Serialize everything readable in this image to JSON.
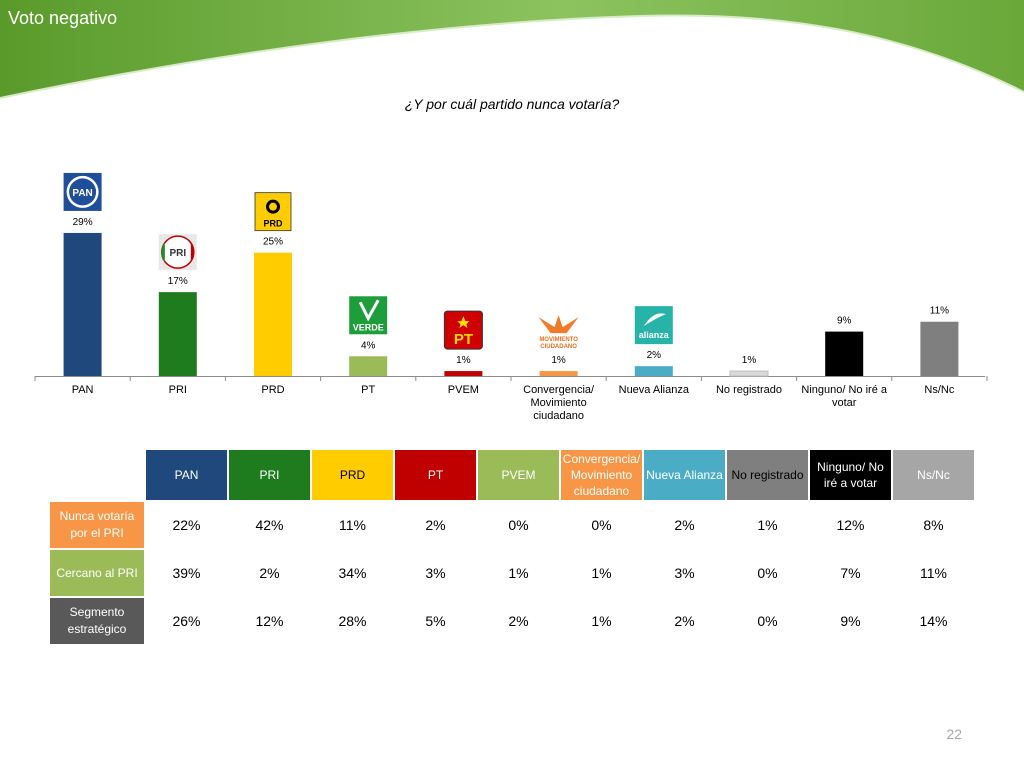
{
  "slide": {
    "title": "Voto negativo",
    "page_number": "22"
  },
  "colors": {
    "header_green": "#5f9e2f",
    "header_light": "#8fc463"
  },
  "chart_data": {
    "type": "bar",
    "title": "¿Y por cuál partido nunca votaría?",
    "categories": [
      "PAN",
      "PRI",
      "PRD",
      "PT",
      "PVEM",
      "Convergencia/ Movimiento ciudadano",
      "Nueva Alianza",
      "No registrado",
      "Ninguno/ No iré a votar",
      "Ns/Nc"
    ],
    "values": [
      29,
      17,
      25,
      4,
      1,
      1,
      2,
      1,
      9,
      11
    ],
    "value_labels": [
      "29%",
      "17%",
      "25%",
      "4%",
      "1%",
      "1%",
      "2%",
      "1%",
      "9%",
      "11%"
    ],
    "colors": [
      "#1f497d",
      "#1e7b1e",
      "#ffcc00",
      "#9bbb59",
      "#c00000",
      "#f79646",
      "#4bacc6",
      "#d9d9d9",
      "#000000",
      "#7f7f7f"
    ],
    "logos": [
      {
        "name": "pan-logo",
        "text": "PAN"
      },
      {
        "name": "pri-logo",
        "text": "PRI"
      },
      {
        "name": "prd-logo",
        "text": "PRD"
      },
      {
        "name": "pt-verde-logo",
        "text": "VERDE"
      },
      {
        "name": "pvem-pt-logo",
        "text": "PT"
      },
      {
        "name": "movimiento-ciudadano-logo",
        "text": "MOVIMIENTO CIUDADANO"
      },
      {
        "name": "nueva-alianza-logo",
        "text": "alianza"
      }
    ],
    "ylim": [
      0,
      30
    ],
    "grid": false,
    "legend": "none"
  },
  "table": {
    "columns": [
      {
        "label": "PAN",
        "bg": "#1f497d",
        "fg": "#ffffff"
      },
      {
        "label": "PRI",
        "bg": "#1e7b1e",
        "fg": "#ffffff"
      },
      {
        "label": "PRD",
        "bg": "#ffcc00",
        "fg": "#000000"
      },
      {
        "label": "PT",
        "bg": "#c00000",
        "fg": "#ffffff"
      },
      {
        "label": "PVEM",
        "bg": "#9bbb59",
        "fg": "#ffffff"
      },
      {
        "label": "Convergencia/ Movimiento ciudadano",
        "bg": "#f79646",
        "fg": "#ffffff"
      },
      {
        "label": "Nueva Alianza",
        "bg": "#4bacc6",
        "fg": "#ffffff"
      },
      {
        "label": "No registrado",
        "bg": "#7f7f7f",
        "fg": "#000000"
      },
      {
        "label": "Ninguno/ No iré a votar",
        "bg": "#000000",
        "fg": "#ffffff"
      },
      {
        "label": "Ns/Nc",
        "bg": "#a6a6a6",
        "fg": "#ffffff"
      }
    ],
    "rows": [
      {
        "label": "Nunca votaría por el PRI",
        "bg": "#f79646",
        "values": [
          "22%",
          "42%",
          "11%",
          "2%",
          "0%",
          "0%",
          "2%",
          "1%",
          "12%",
          "8%"
        ]
      },
      {
        "label": "Cercano al PRI",
        "bg": "#9bbb59",
        "values": [
          "39%",
          "2%",
          "34%",
          "3%",
          "1%",
          "1%",
          "3%",
          "0%",
          "7%",
          "11%"
        ]
      },
      {
        "label": "Segmento estratégico",
        "bg": "#595959",
        "values": [
          "26%",
          "12%",
          "28%",
          "5%",
          "2%",
          "1%",
          "2%",
          "0%",
          "9%",
          "14%"
        ]
      }
    ]
  }
}
